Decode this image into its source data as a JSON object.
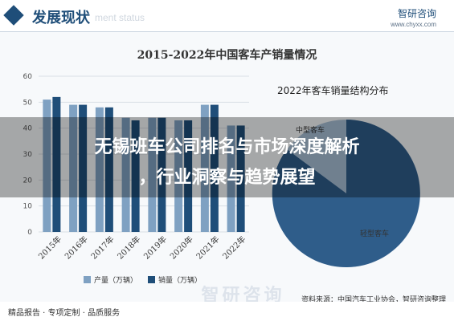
{
  "header": {
    "title": "发展现状",
    "ghost_text": "ment status",
    "logo": "智研咨询",
    "site": "www.chyxx.com"
  },
  "overlay": {
    "line1": "无锡班车公司排名与市场深度解析",
    "line2": "，行业洞察与趋势展望"
  },
  "pie": {
    "title": "2022年客车销量结构分布",
    "labels": [
      "中型客车",
      "轻型客车"
    ]
  },
  "footer": {
    "source": "资料来源：中国汽车工业协会，智研咨询整理",
    "left": "精品报告 · 专项定制 · 品质服务",
    "watermark": "智研咨询"
  },
  "colors": {
    "production": "#7fa1c2",
    "sales": "#1f4e79",
    "pie_main": "#2f5d8a",
    "pie_light": "#a8bfd6"
  },
  "chart_data": {
    "type": "bar",
    "title": "2015-2022年中国客车产销量情况",
    "categories": [
      "2015年",
      "2016年",
      "2017年",
      "2018年",
      "2019年",
      "2020年",
      "2021年",
      "2022年"
    ],
    "series": [
      {
        "name": "产量（万辆）",
        "values": [
          51,
          49,
          48,
          44,
          44,
          43,
          49,
          41
        ]
      },
      {
        "name": "销量（万辆）",
        "values": [
          52,
          49,
          48,
          43,
          44,
          43,
          49,
          41
        ]
      }
    ],
    "yticks": [
      "0",
      "10",
      "20",
      "30",
      "40",
      "50",
      "60"
    ],
    "ylim": [
      0,
      60
    ],
    "grid": true,
    "legend": "bottom"
  }
}
